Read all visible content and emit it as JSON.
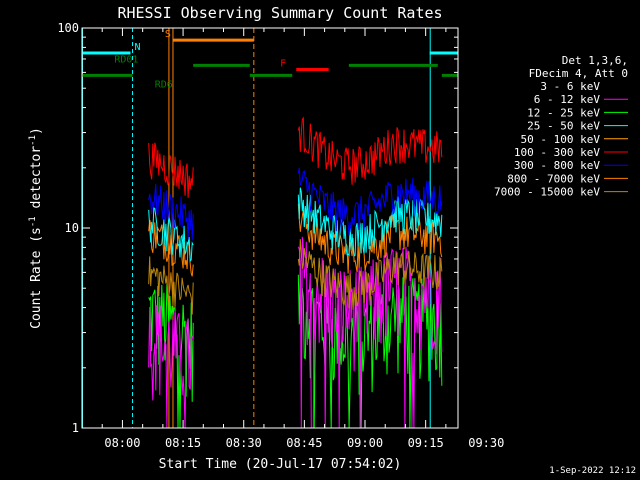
{
  "chart_data": {
    "type": "line",
    "title": "RHESSI Observing Summary Count Rates",
    "xlabel": "Start Time (20-Jul-17 07:54:02)",
    "ylabel_parts": [
      "Count Rate (s",
      "-1",
      " detector",
      "-1",
      ")"
    ],
    "yscale": "log",
    "ylim": [
      1,
      100
    ],
    "y_ticks": [
      {
        "v": 1,
        "label": "1"
      },
      {
        "v": 10,
        "label": "10"
      },
      {
        "v": 100,
        "label": "100"
      }
    ],
    "xlim_min": [
      -4,
      89
    ],
    "x_ticks": [
      {
        "v": 6,
        "label": "08:00"
      },
      {
        "v": 21,
        "label": "08:15"
      },
      {
        "v": 36,
        "label": "08:30"
      },
      {
        "v": 51,
        "label": "08:45"
      },
      {
        "v": 66,
        "label": "09:00"
      },
      {
        "v": 81,
        "label": "09:15"
      },
      {
        "v": 96,
        "label": "09:30"
      }
    ],
    "legend_header": [
      "Det 1,3,6,",
      "FDecim 4, Att 0"
    ],
    "series": [
      {
        "name": "3 - 6 keV",
        "color": "#000000"
      },
      {
        "name": "6 - 12 keV",
        "color": "#ff00ff"
      },
      {
        "name": "12 - 25 keV",
        "color": "#00ff00"
      },
      {
        "name": "25 - 50 keV",
        "color": "#00ffff"
      },
      {
        "name": "50 - 100 keV",
        "color": "#ffa500"
      },
      {
        "name": "100 - 300 keV",
        "color": "#ff0000"
      },
      {
        "name": "300 - 800 keV",
        "color": "#0000ff"
      },
      {
        "name": "800 - 7000 keV",
        "color": "#ff8000"
      },
      {
        "name": "7000 - 15000 keV",
        "color": "#b8860b"
      }
    ],
    "segments": [
      {
        "x0": 12.5,
        "x1": 23.5,
        "levels": {
          "6 - 12 keV": 2.5,
          "12 - 25 keV": 3.2,
          "25 - 50 keV": 9.0,
          "100 - 300 keV": 19,
          "300 - 800 keV": 12,
          "800 - 7000 keV": 8.0,
          "7000 - 15000 keV": 5.0
        }
      },
      {
        "x0": 49.5,
        "x1": 85,
        "levels": {
          "6 - 12 keV": 5.0,
          "12 - 25 keV": 3.5,
          "25 - 50 keV": 11,
          "100 - 300 keV": 25,
          "300 - 800 keV": 14,
          "800 - 7000 keV": 9.0,
          "7000 - 15000 keV": 6.0
        }
      }
    ],
    "flags": [
      {
        "label": "N",
        "color": "#00ffff",
        "y": 75,
        "ranges": [
          [
            -4,
            8
          ]
        ],
        "label_x": 9
      },
      {
        "label": "S",
        "color": "#ff8000",
        "y": 87,
        "ranges": [
          [
            18.5,
            38.5
          ]
        ],
        "label_x": 16.5
      },
      {
        "label": "F",
        "color": "#ff0000",
        "y": 62,
        "ranges": [
          [
            49,
            57
          ]
        ],
        "label_x": 45
      },
      {
        "label": "RD01",
        "color": "#008000",
        "y": 65,
        "ranges": [
          [
            23.5,
            37.5
          ]
        ],
        "label_x": 4
      },
      {
        "label": "RD6",
        "color": "#008000",
        "y": 58,
        "ranges": [
          [
            -4,
            8.5
          ],
          [
            37.5,
            48
          ]
        ],
        "label_x": 14
      }
    ],
    "saa_cyan_regions": [
      [
        -4,
        8.5
      ],
      [
        82,
        89
      ]
    ],
    "night_orange_lines": [
      17.5,
      18.5,
      38.5
    ],
    "footer_date": "1-Sep-2022 12:12"
  }
}
